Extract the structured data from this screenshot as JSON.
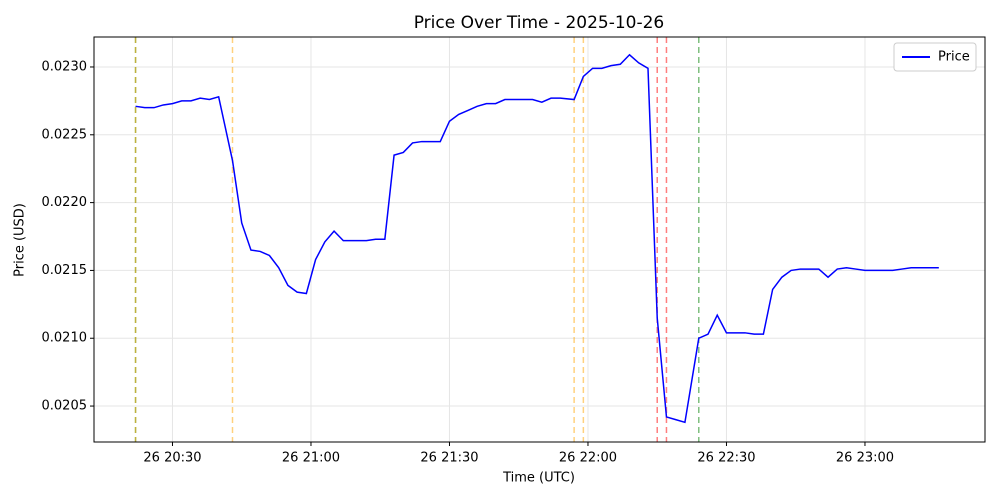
{
  "chart_data": {
    "type": "line",
    "title": "Price Over Time - 2025-10-26",
    "x_label": "Time (UTC)",
    "y_label": "Price (USD)",
    "x": [
      "26 20:22",
      "26 20:24",
      "26 20:26",
      "26 20:28",
      "26 20:30",
      "26 20:32",
      "26 20:34",
      "26 20:36",
      "26 20:38",
      "26 20:40",
      "26 20:43",
      "26 20:45",
      "26 20:47",
      "26 20:49",
      "26 20:51",
      "26 20:53",
      "26 20:55",
      "26 20:57",
      "26 20:59",
      "26 21:01",
      "26 21:03",
      "26 21:05",
      "26 21:07",
      "26 21:09",
      "26 21:12",
      "26 21:14",
      "26 21:16",
      "26 21:18",
      "26 21:20",
      "26 21:22",
      "26 21:24",
      "26 21:26",
      "26 21:28",
      "26 21:30",
      "26 21:32",
      "26 21:34",
      "26 21:36",
      "26 21:38",
      "26 21:40",
      "26 21:42",
      "26 21:44",
      "26 21:46",
      "26 21:48",
      "26 21:50",
      "26 21:52",
      "26 21:54",
      "26 21:57",
      "26 21:59",
      "26 22:01",
      "26 22:03",
      "26 22:05",
      "26 22:07",
      "26 22:09",
      "26 22:11",
      "26 22:13",
      "26 22:15",
      "26 22:17",
      "26 22:19",
      "26 22:21",
      "26 22:24",
      "26 22:26",
      "26 22:28",
      "26 22:30",
      "26 22:32",
      "26 22:34",
      "26 22:36",
      "26 22:38",
      "26 22:40",
      "26 22:42",
      "26 22:44",
      "26 22:46",
      "26 22:48",
      "26 22:50",
      "26 22:52",
      "26 22:54",
      "26 22:56",
      "26 22:58",
      "26 23:00",
      "26 23:02",
      "26 23:04",
      "26 23:06",
      "26 23:08",
      "26 23:10",
      "26 23:12",
      "26 23:14",
      "26 23:16"
    ],
    "series": [
      {
        "name": "Price",
        "color": "#0000ff",
        "values": [
          0.02271,
          0.0227,
          0.0227,
          0.02272,
          0.02273,
          0.02275,
          0.02275,
          0.02277,
          0.02276,
          0.02278,
          0.02231,
          0.02185,
          0.02165,
          0.02164,
          0.02161,
          0.02152,
          0.02139,
          0.02134,
          0.02133,
          0.02158,
          0.02171,
          0.02179,
          0.02172,
          0.02172,
          0.02172,
          0.02173,
          0.02173,
          0.02235,
          0.02237,
          0.02244,
          0.02245,
          0.02245,
          0.02245,
          0.0226,
          0.02265,
          0.02268,
          0.02271,
          0.02273,
          0.02273,
          0.02276,
          0.02276,
          0.02276,
          0.02276,
          0.02274,
          0.02277,
          0.02277,
          0.02276,
          0.02293,
          0.02299,
          0.02299,
          0.02301,
          0.02302,
          0.02309,
          0.02303,
          0.02299,
          0.02115,
          0.02042,
          0.0204,
          0.02038,
          0.021,
          0.02103,
          0.02117,
          0.02104,
          0.02104,
          0.02104,
          0.02103,
          0.02103,
          0.02136,
          0.02145,
          0.0215,
          0.02151,
          0.02151,
          0.02151,
          0.02145,
          0.02151,
          0.02152,
          0.02151,
          0.0215,
          0.0215,
          0.0215,
          0.0215,
          0.02151,
          0.02152,
          0.02152,
          0.02152,
          0.02152
        ]
      }
    ],
    "vlines": [
      {
        "x": "26 20:22",
        "color": "green"
      },
      {
        "x": "26 20:22",
        "color": "orange"
      },
      {
        "x": "26 20:43",
        "color": "orange"
      },
      {
        "x": "26 21:57",
        "color": "orange"
      },
      {
        "x": "26 21:59",
        "color": "orange"
      },
      {
        "x": "26 22:15",
        "color": "red"
      },
      {
        "x": "26 22:17",
        "color": "red"
      },
      {
        "x": "26 22:24",
        "color": "green"
      }
    ],
    "xlim": [
      "26 20:13",
      "26 23:26"
    ],
    "xticks": [
      "26 20:30",
      "26 21:00",
      "26 21:30",
      "26 22:00",
      "26 22:30",
      "26 23:00"
    ],
    "ylim": [
      0.020235,
      0.023221
    ],
    "yticks": [
      {
        "value": 0.0205,
        "label": "0.0205"
      },
      {
        "value": 0.021,
        "label": "0.0210"
      },
      {
        "value": 0.0215,
        "label": "0.0215"
      },
      {
        "value": 0.022,
        "label": "0.0220"
      },
      {
        "value": 0.0225,
        "label": "0.0225"
      },
      {
        "value": 0.023,
        "label": "0.0230"
      }
    ],
    "grid": true,
    "legend": "upper right"
  }
}
